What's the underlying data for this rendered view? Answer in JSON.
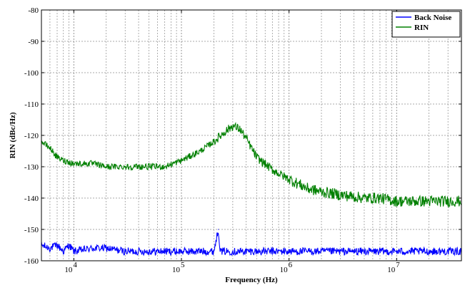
{
  "chart_data": {
    "type": "line",
    "title": "",
    "xlabel": "Frequency (Hz)",
    "ylabel": "RIN (dBc/Hz)",
    "xscale": "log",
    "xlim": [
      5000,
      40000000
    ],
    "ylim": [
      -160,
      -80
    ],
    "yticks": [
      -80,
      -90,
      -100,
      -110,
      -120,
      -130,
      -140,
      -150,
      -160
    ],
    "xtick_labels": [
      {
        "base": "10",
        "exp": "4",
        "value": 10000
      },
      {
        "base": "10",
        "exp": "5",
        "value": 100000
      },
      {
        "base": "10",
        "exp": "6",
        "value": 1000000
      },
      {
        "base": "10",
        "exp": "7",
        "value": 10000000
      }
    ],
    "grid": true,
    "legend_position": "top-right",
    "series": [
      {
        "name": "Back Noise",
        "color": "#0000ff",
        "x": [
          5000,
          6000,
          7000,
          8000,
          9000,
          10000,
          15000,
          20000,
          30000,
          50000,
          70000,
          100000,
          150000,
          200000,
          220000,
          230000,
          300000,
          500000,
          1000000,
          2000000,
          5000000,
          10000000,
          20000000,
          40000000
        ],
        "y": [
          -155,
          -156,
          -155,
          -157,
          -155,
          -157,
          -156,
          -156,
          -157,
          -157,
          -157,
          -157,
          -157,
          -157,
          -150,
          -157,
          -157,
          -157,
          -157,
          -157,
          -157,
          -157,
          -157,
          -157
        ]
      },
      {
        "name": "RIN",
        "color": "#008000",
        "x": [
          5000,
          6000,
          7000,
          8000,
          10000,
          15000,
          20000,
          30000,
          50000,
          70000,
          100000,
          150000,
          200000,
          250000,
          300000,
          350000,
          400000,
          500000,
          700000,
          1000000,
          1500000,
          2000000,
          3000000,
          5000000,
          7000000,
          10000000,
          20000000,
          40000000
        ],
        "y": [
          -122,
          -124,
          -127,
          -128,
          -129,
          -129,
          -130,
          -130,
          -130,
          -130,
          -128,
          -125,
          -122,
          -119,
          -117,
          -118,
          -121,
          -127,
          -131,
          -134,
          -137,
          -138,
          -139,
          -140,
          -140,
          -141,
          -141,
          -141
        ]
      }
    ]
  }
}
